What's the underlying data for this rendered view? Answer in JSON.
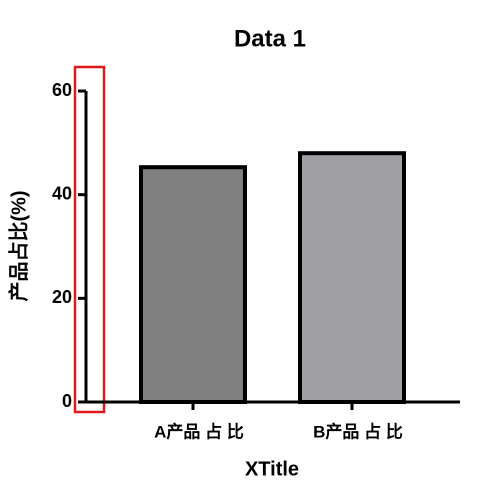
{
  "chart_data": {
    "type": "bar",
    "title": "Data 1",
    "x_label": "XTitle",
    "y_label": "产品占比(%)",
    "categories": [
      "A产品 占 比",
      "B产品 占 比"
    ],
    "values": [
      45.3,
      48
    ],
    "colors": [
      "#808080",
      "#a0a0a4"
    ],
    "ylim": [
      0,
      60
    ],
    "yticks": [
      0,
      20,
      40,
      60
    ]
  }
}
